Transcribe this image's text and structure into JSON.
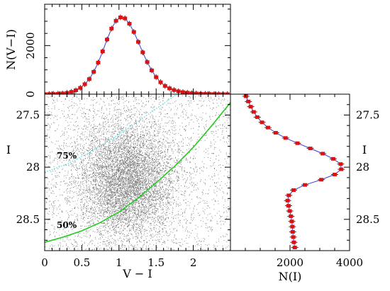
{
  "colors": {
    "points": "#000000",
    "fit_line": "#3b3bdc",
    "markers": "#dd1111",
    "contour_75": "#44dddd",
    "contour_50": "#22cc22"
  },
  "chart_data": [
    {
      "id": "top-histogram",
      "type": "line",
      "xlabel": "",
      "ylabel": "N(V−I)",
      "xlim": [
        0,
        2.5
      ],
      "ylim": [
        0,
        3700
      ],
      "y_ticks": [
        0,
        2000
      ],
      "series": [
        {
          "marker": "filled-square-red-errorbar",
          "x": [
            0.0,
            0.06,
            0.12,
            0.18,
            0.24,
            0.3,
            0.36,
            0.42,
            0.48,
            0.54,
            0.6,
            0.66,
            0.72,
            0.78,
            0.84,
            0.9,
            0.96,
            1.02,
            1.08,
            1.14,
            1.2,
            1.26,
            1.32,
            1.38,
            1.44,
            1.5,
            1.56,
            1.62,
            1.68,
            1.74,
            1.8,
            1.86,
            1.92,
            1.98,
            2.04,
            2.1,
            2.16,
            2.22,
            2.28,
            2.34,
            2.4,
            2.46
          ],
          "y": [
            3,
            6,
            10,
            17,
            30,
            55,
            95,
            160,
            260,
            410,
            620,
            920,
            1300,
            1760,
            2250,
            2700,
            3020,
            3160,
            3120,
            2900,
            2560,
            2150,
            1720,
            1320,
            980,
            700,
            490,
            340,
            240,
            170,
            120,
            85,
            60,
            40,
            28,
            18,
            12,
            8,
            5,
            3,
            2,
            1
          ]
        }
      ]
    },
    {
      "id": "cmd",
      "type": "scatter",
      "xlabel": "V − I",
      "ylabel": "I",
      "xlim": [
        0,
        2.5
      ],
      "ylim": [
        28.8,
        27.3
      ],
      "x_ticks": [
        0,
        0.5,
        1,
        1.5,
        2
      ],
      "x_tick_labels": [
        "0",
        "0.5",
        "1",
        "1.5",
        "2"
      ],
      "y_ticks": [
        27.5,
        28,
        28.5
      ],
      "y_tick_labels": [
        "27.5",
        "28",
        "28.5"
      ],
      "points_description": "dense cloud of black points, peak density near V−I≈1.1, I≈28.1",
      "contours": [
        {
          "label": "75%",
          "style": "dotted",
          "x": [
            0.0,
            0.3,
            0.6,
            0.9,
            1.2,
            1.5,
            1.8
          ],
          "y": [
            28.05,
            27.97,
            27.86,
            27.73,
            27.59,
            27.44,
            27.29
          ]
        },
        {
          "label": "50%",
          "style": "solid",
          "x": [
            0.0,
            0.25,
            0.5,
            0.75,
            1.0,
            1.25,
            1.5,
            1.75,
            2.0,
            2.25,
            2.5
          ],
          "y": [
            28.72,
            28.67,
            28.61,
            28.53,
            28.43,
            28.3,
            28.15,
            27.99,
            27.81,
            27.6,
            27.38
          ]
        }
      ]
    },
    {
      "id": "right-histogram",
      "type": "line",
      "xlabel": "N(I)",
      "ylabel": "I",
      "xlim": [
        0,
        4000
      ],
      "ylim": [
        28.8,
        27.3
      ],
      "x_ticks": [
        2000,
        4000
      ],
      "x_tick_labels": [
        "2000",
        "4000"
      ],
      "y_ticks": [
        27.5,
        28,
        28.5
      ],
      "y_tick_labels": [
        "27.5",
        "28",
        "28.5"
      ],
      "series": [
        {
          "marker": "filled-square-red-errorbar",
          "I": [
            27.32,
            27.37,
            27.42,
            27.47,
            27.52,
            27.57,
            27.62,
            27.67,
            27.72,
            27.77,
            27.82,
            27.87,
            27.92,
            27.97,
            28.02,
            28.07,
            28.12,
            28.17,
            28.22,
            28.27,
            28.32,
            28.37,
            28.42,
            28.47,
            28.52,
            28.57,
            28.62,
            28.67,
            28.72,
            28.77
          ],
          "N": [
            520,
            600,
            680,
            780,
            900,
            1060,
            1260,
            1520,
            1850,
            2250,
            2680,
            3100,
            3450,
            3700,
            3720,
            3500,
            3050,
            2500,
            2120,
            1960,
            1920,
            1950,
            1990,
            2030,
            2060,
            2080,
            2090,
            2110,
            2130,
            2160
          ]
        }
      ]
    }
  ]
}
